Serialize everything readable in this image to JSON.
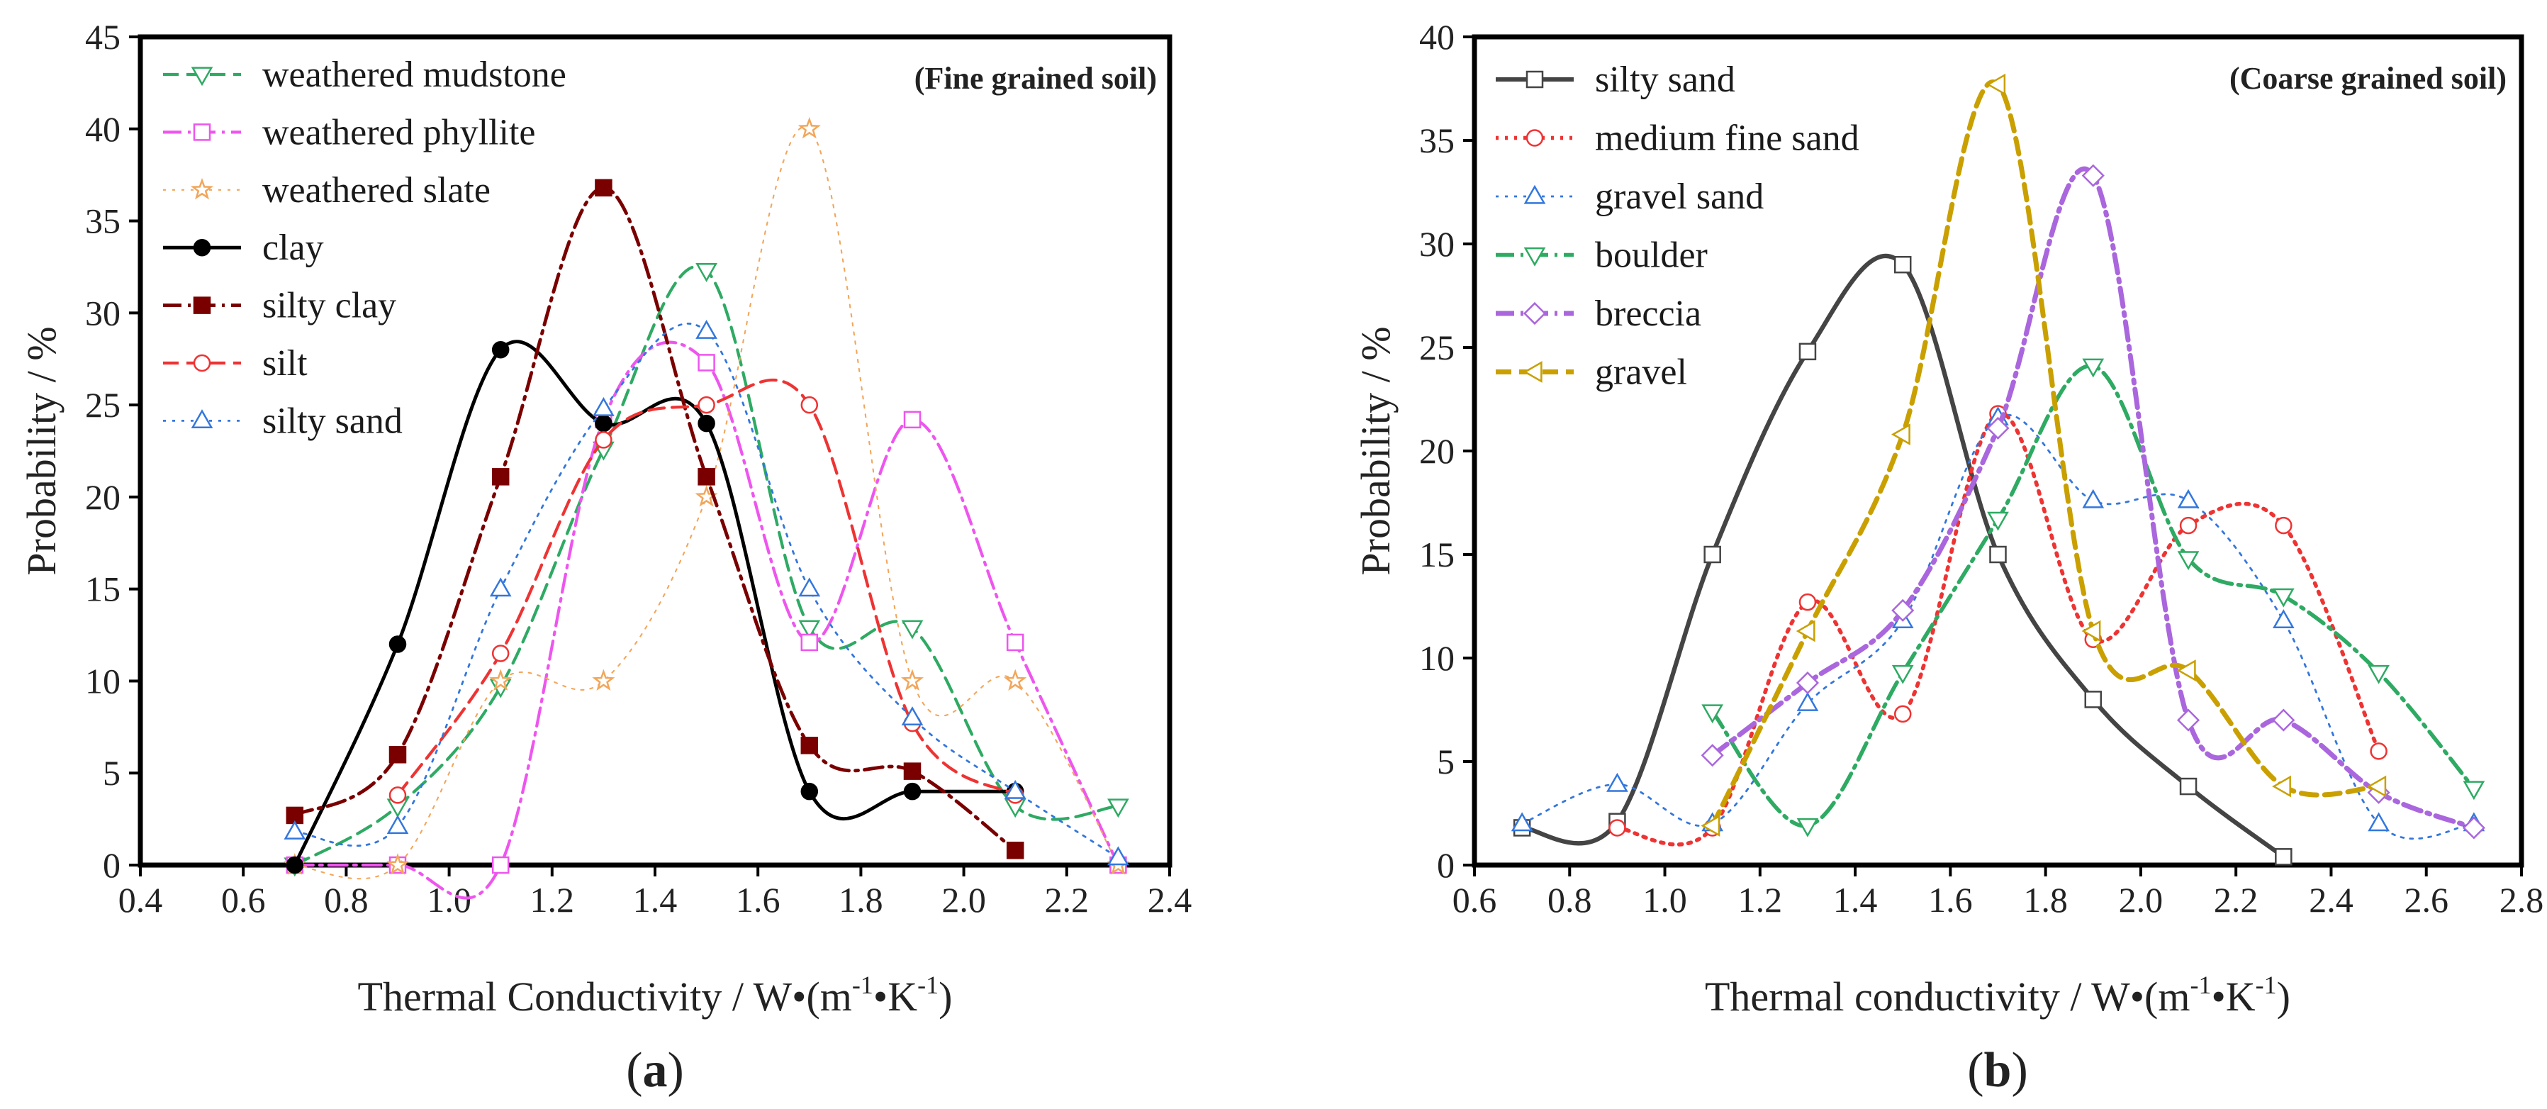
{
  "chart_data": [
    {
      "type": "line",
      "panel": "a",
      "title": "(Fine grained soil)",
      "xlabel_prefix": "Thermal Conductivity / W•(m",
      "xlabel_sup1": "-1",
      "xlabel_mid": "•K",
      "xlabel_sup2": "-1",
      "xlabel_suffix": ")",
      "ylabel": "Probability / %",
      "caption_open": "(",
      "caption_letter": "a",
      "caption_close": ")",
      "xlim": [
        0.4,
        2.4
      ],
      "ylim": [
        0,
        45
      ],
      "xticks": [
        0.4,
        0.6,
        0.8,
        1.0,
        1.2,
        1.4,
        1.6,
        1.8,
        2.0,
        2.2,
        2.4
      ],
      "xtick_labels": [
        "0.4",
        "0.6",
        "0.8",
        "1.0",
        "1.2",
        "1.4",
        "1.6",
        "1.8",
        "2.0",
        "2.2",
        "2.4"
      ],
      "yticks": [
        0,
        5,
        10,
        15,
        20,
        25,
        30,
        35,
        40,
        45
      ],
      "ytick_labels": [
        "0",
        "5",
        "10",
        "15",
        "20",
        "25",
        "30",
        "35",
        "40",
        "45"
      ],
      "legend_position": "top-left",
      "series": [
        {
          "name": "weathered mudstone",
          "color": "#2eaa63",
          "dash": "dash",
          "width": 3,
          "marker": "tri-down",
          "fill": "none",
          "x": [
            0.7,
            0.9,
            1.1,
            1.3,
            1.5,
            1.7,
            1.9,
            2.1,
            2.3
          ],
          "y": [
            0,
            3.2,
            9.7,
            22.6,
            32.3,
            12.9,
            12.9,
            3.2,
            3.2
          ]
        },
        {
          "name": "weathered phyllite",
          "color": "#ee55ee",
          "dash": "dashdot",
          "width": 3,
          "marker": "square",
          "fill": "none",
          "x": [
            0.7,
            0.9,
            1.1,
            1.3,
            1.5,
            1.7,
            1.9,
            2.1,
            2.3
          ],
          "y": [
            0,
            0,
            0,
            24.2,
            27.3,
            12.1,
            24.2,
            12.1,
            0
          ]
        },
        {
          "name": "weathered slate",
          "color": "#f2a65a",
          "dash": "dot",
          "width": 1.5,
          "marker": "star",
          "fill": "none",
          "x": [
            0.7,
            0.9,
            1.1,
            1.3,
            1.5,
            1.7,
            1.9,
            2.1,
            2.3
          ],
          "y": [
            0,
            0,
            10,
            10,
            20,
            40,
            10,
            10,
            0
          ]
        },
        {
          "name": "clay",
          "color": "#000000",
          "dash": "solid",
          "width": 3.5,
          "marker": "circle",
          "fill": "filled",
          "x": [
            0.7,
            0.9,
            1.1,
            1.3,
            1.5,
            1.7,
            1.9,
            2.1
          ],
          "y": [
            0,
            12,
            28,
            24,
            24,
            4,
            4,
            4
          ]
        },
        {
          "name": "silty clay",
          "color": "#7a0000",
          "dash": "dashdot",
          "width": 3.5,
          "marker": "square",
          "fill": "filled",
          "x": [
            0.7,
            0.9,
            1.1,
            1.3,
            1.5,
            1.7,
            1.9,
            2.1
          ],
          "y": [
            2.7,
            6,
            21.1,
            36.8,
            21.1,
            6.5,
            5.1,
            0.8
          ]
        },
        {
          "name": "silt",
          "color": "#ee3333",
          "dash": "dash",
          "width": 3,
          "marker": "circle",
          "fill": "none",
          "x": [
            0.9,
            1.1,
            1.3,
            1.5,
            1.7,
            1.9,
            2.1
          ],
          "y": [
            3.8,
            11.5,
            23.1,
            25,
            25,
            7.7,
            3.8
          ]
        },
        {
          "name": "silty sand",
          "color": "#3377dd",
          "dash": "dot",
          "width": 2,
          "marker": "tri-up",
          "fill": "none",
          "x": [
            0.7,
            0.9,
            1.1,
            1.3,
            1.5,
            1.7,
            1.9,
            2.1,
            2.3
          ],
          "y": [
            1.8,
            2.1,
            15,
            24.8,
            29,
            15,
            8,
            4,
            0.4
          ]
        }
      ]
    },
    {
      "type": "line",
      "panel": "b",
      "title": "(Coarse grained soil)",
      "xlabel_prefix": "Thermal conductivity / W•(m",
      "xlabel_sup1": "-1",
      "xlabel_mid": "•K",
      "xlabel_sup2": "-1",
      "xlabel_suffix": ")",
      "ylabel": "Probability / %",
      "caption_open": "(",
      "caption_letter": "b",
      "caption_close": ")",
      "xlim": [
        0.6,
        2.8
      ],
      "ylim": [
        0,
        40
      ],
      "xticks": [
        0.6,
        0.8,
        1.0,
        1.2,
        1.4,
        1.6,
        1.8,
        2.0,
        2.2,
        2.4,
        2.6,
        2.8
      ],
      "xtick_labels": [
        "0.6",
        "0.8",
        "1.0",
        "1.2",
        "1.4",
        "1.6",
        "1.8",
        "2.0",
        "2.2",
        "2.4",
        "2.6",
        "2.8"
      ],
      "yticks": [
        0,
        5,
        10,
        15,
        20,
        25,
        30,
        35,
        40
      ],
      "ytick_labels": [
        "0",
        "5",
        "10",
        "15",
        "20",
        "25",
        "30",
        "35",
        "40"
      ],
      "legend_position": "top-left",
      "series": [
        {
          "name": "silty sand",
          "color": "#444444",
          "dash": "solid",
          "width": 4.5,
          "marker": "square",
          "fill": "none",
          "x": [
            0.7,
            0.9,
            1.1,
            1.3,
            1.5,
            1.7,
            1.9,
            2.1,
            2.3
          ],
          "y": [
            1.8,
            2.1,
            15,
            24.8,
            29,
            15,
            8,
            3.8,
            0.4
          ]
        },
        {
          "name": "medium fine sand",
          "color": "#ee3333",
          "dash": "dot",
          "width": 4,
          "marker": "circle",
          "fill": "none",
          "x": [
            0.9,
            1.1,
            1.3,
            1.5,
            1.7,
            1.9,
            2.1,
            2.3,
            2.5
          ],
          "y": [
            1.8,
            1.8,
            12.7,
            7.3,
            21.8,
            10.9,
            16.4,
            16.4,
            5.5
          ]
        },
        {
          "name": "gravel sand",
          "color": "#3377dd",
          "dash": "dot",
          "width": 2,
          "marker": "tri-up",
          "fill": "none",
          "x": [
            0.7,
            0.9,
            1.1,
            1.3,
            1.5,
            1.7,
            1.9,
            2.1,
            2.3,
            2.5,
            2.7
          ],
          "y": [
            2,
            3.9,
            2,
            7.8,
            11.8,
            21.6,
            17.6,
            17.6,
            11.8,
            2,
            2
          ]
        },
        {
          "name": "boulder",
          "color": "#2eaa63",
          "dash": "dashdot",
          "width": 4,
          "marker": "tri-down",
          "fill": "none",
          "x": [
            1.1,
            1.3,
            1.5,
            1.7,
            1.9,
            2.1,
            2.3,
            2.5,
            2.7
          ],
          "y": [
            7.4,
            1.9,
            9.3,
            16.7,
            24.1,
            14.8,
            13,
            9.3,
            3.7
          ]
        },
        {
          "name": "breccia",
          "color": "#aa66dd",
          "dash": "dashdot",
          "width": 5,
          "marker": "diamond",
          "fill": "none",
          "x": [
            1.1,
            1.3,
            1.5,
            1.7,
            1.9,
            2.1,
            2.3,
            2.5,
            2.7
          ],
          "y": [
            5.3,
            8.8,
            12.3,
            21.1,
            33.3,
            7,
            7,
            3.5,
            1.8
          ]
        },
        {
          "name": "gravel",
          "color": "#c9a000",
          "dash": "dash",
          "width": 5,
          "marker": "tri-left",
          "fill": "none",
          "x": [
            1.1,
            1.3,
            1.5,
            1.7,
            1.9,
            2.1,
            2.3,
            2.5
          ],
          "y": [
            1.9,
            11.3,
            20.8,
            37.7,
            11.3,
            9.4,
            3.8,
            3.8
          ]
        }
      ]
    }
  ]
}
